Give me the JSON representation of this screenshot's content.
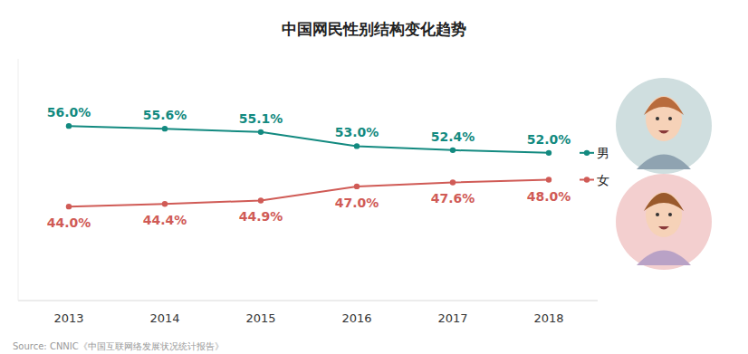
{
  "chart_data": {
    "type": "line",
    "title": "中国网民性别结构变化趋势",
    "source": "Source: CNNIC《中国互联网络发展状况统计报告》",
    "categories": [
      "2013",
      "2014",
      "2015",
      "2016",
      "2017",
      "2018"
    ],
    "series": [
      {
        "name": "男",
        "color": "#138a80",
        "marker": "circle",
        "line_style": "solid",
        "values": [
          56.0,
          55.6,
          55.1,
          53.0,
          52.4,
          52.0
        ],
        "value_labels": [
          "56.0%",
          "55.6%",
          "55.1%",
          "53.0%",
          "52.4%",
          "52.0%"
        ]
      },
      {
        "name": "女",
        "color": "#d05b56",
        "marker": "circle",
        "line_style": "solid",
        "values": [
          44.0,
          44.4,
          44.9,
          47.0,
          47.6,
          48.0
        ],
        "value_labels": [
          "44.0%",
          "44.4%",
          "44.9%",
          "47.0%",
          "47.6%",
          "48.0%"
        ]
      }
    ],
    "ylim": [
      30,
      66
    ],
    "grid": false,
    "data_labels": true,
    "tick_labels": "x",
    "legend": "right"
  }
}
